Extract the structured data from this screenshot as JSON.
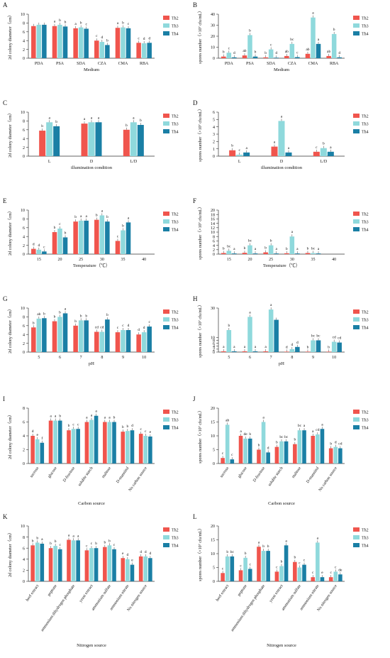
{
  "colors": {
    "Th2": "#f0554d",
    "Th3": "#8fd9dc",
    "Th4": "#1a7fa5"
  },
  "chart_data": [
    {
      "panel_label": "A",
      "type": "bar",
      "xlabel": "Medium",
      "ylabel": "2d colony diameter（cm）",
      "ylim": [
        0,
        10
      ],
      "yticks": [
        0,
        2,
        4,
        6,
        8,
        10
      ],
      "categories": [
        "PDA",
        "PSA",
        "SDA",
        "CZA",
        "CMA",
        "RBA"
      ],
      "series": [
        {
          "name": "Th2",
          "values": [
            7.3,
            7.3,
            6.8,
            4.0,
            6.9,
            3.5
          ],
          "letters": [
            "",
            "a",
            "a",
            "c",
            "a",
            "c"
          ]
        },
        {
          "name": "Th3",
          "values": [
            7.6,
            7.6,
            7.0,
            3.7,
            7.0,
            3.4
          ],
          "letters": [
            "",
            "b",
            "b",
            "d",
            "b",
            "d"
          ]
        },
        {
          "name": "Th4",
          "values": [
            7.6,
            7.2,
            6.7,
            3.0,
            6.8,
            3.5
          ],
          "letters": [
            "",
            "b",
            "c",
            "b",
            "c",
            "d"
          ]
        }
      ],
      "legend": "right"
    },
    {
      "panel_label": "B",
      "type": "bar",
      "xlabel": "Medium",
      "ylabel": "spores number（×10⁷ cfu/mL）",
      "ylim": [
        0,
        40
      ],
      "yticks": [
        0,
        10,
        20,
        30,
        40
      ],
      "categories": [
        "PDA",
        "PSA",
        "SDA",
        "CZA",
        "CMA",
        "RBA"
      ],
      "series": [
        {
          "name": "Th2",
          "values": [
            1.5,
            2.5,
            0.8,
            2.0,
            4.0,
            2.0
          ],
          "letters": [
            "b",
            "ab",
            "b",
            "ab",
            "ab",
            "ab"
          ]
        },
        {
          "name": "Th3",
          "values": [
            5.0,
            21.0,
            8.0,
            13.0,
            37.0,
            22.0
          ],
          "letters": [
            "c",
            "b",
            "c",
            "bc",
            "a",
            "b"
          ]
        },
        {
          "name": "Th4",
          "values": [
            0.8,
            1.5,
            0.5,
            1.0,
            13.0,
            0.8
          ],
          "letters": [
            "d",
            "b",
            "d",
            "c",
            "a",
            "d"
          ]
        }
      ],
      "legend": "right"
    },
    {
      "panel_label": "C",
      "type": "bar",
      "xlabel": "illumination condition",
      "ylabel": "2d colony diameter（cm）",
      "ylim": [
        0,
        10
      ],
      "yticks": [
        0,
        2,
        4,
        6,
        8,
        10
      ],
      "categories": [
        "L",
        "D",
        "L/D"
      ],
      "series": [
        {
          "name": "Th2",
          "values": [
            5.8,
            7.4,
            6.0
          ],
          "letters": [
            "b",
            "a",
            "b"
          ]
        },
        {
          "name": "Th3",
          "values": [
            7.7,
            7.7,
            7.7
          ],
          "letters": [
            "a",
            "a",
            "a"
          ]
        },
        {
          "name": "Th4",
          "values": [
            6.8,
            7.7,
            7.1
          ],
          "letters": [
            "b",
            "a",
            "b"
          ]
        }
      ],
      "legend": "right"
    },
    {
      "panel_label": "D",
      "type": "bar",
      "xlabel": "illumination condition",
      "ylabel": "spores number（×10⁷ cfu/mL）",
      "ylim": [
        0,
        6
      ],
      "yticks": [
        0,
        1,
        2,
        3,
        4,
        5,
        6
      ],
      "categories": [
        "L",
        "D",
        "L/D"
      ],
      "series": [
        {
          "name": "Th2",
          "values": [
            0.8,
            1.3,
            0.6
          ],
          "letters": [
            "b",
            "a",
            "c"
          ]
        },
        {
          "name": "Th3",
          "values": [
            0.2,
            4.8,
            1.1
          ],
          "letters": [
            "c",
            "a",
            "b"
          ]
        },
        {
          "name": "Th4",
          "values": [
            0.5,
            0.5,
            0.6
          ],
          "letters": [
            "a",
            "a",
            "a"
          ]
        }
      ],
      "legend": "right"
    },
    {
      "panel_label": "E",
      "type": "bar",
      "xlabel": "Temperature（℃）",
      "ylabel": "2d colony diameter（cm）",
      "ylim": [
        0,
        10
      ],
      "yticks": [
        0,
        2,
        4,
        6,
        8,
        10
      ],
      "categories": [
        "15",
        "20",
        "25",
        "30",
        "35",
        "40"
      ],
      "series": [
        {
          "name": "Th2",
          "values": [
            1.2,
            5.0,
            7.4,
            7.8,
            3.0,
            0
          ],
          "letters": [
            "d",
            "b",
            "b",
            "b",
            "c",
            ""
          ]
        },
        {
          "name": "Th3",
          "values": [
            1.0,
            5.8,
            7.6,
            8.8,
            5.4,
            0
          ],
          "letters": [
            "d",
            "c",
            "a",
            "a",
            "b",
            ""
          ]
        },
        {
          "name": "Th4",
          "values": [
            0.6,
            3.8,
            7.6,
            7.4,
            7.2,
            0
          ],
          "letters": [
            "c",
            "b",
            "a",
            "b",
            "a",
            ""
          ]
        }
      ],
      "legend": "right"
    },
    {
      "panel_label": "F",
      "type": "bar",
      "xlabel": "Temperature（℃）",
      "ylabel": "spores number（×10⁷ cfu/mL）",
      "ylim": [
        0,
        20
      ],
      "yticks": [
        0,
        2,
        4,
        6,
        8,
        10,
        12,
        14,
        16,
        18,
        20
      ],
      "categories": [
        "15",
        "20",
        "25",
        "30",
        "35",
        "40"
      ],
      "series": [
        {
          "name": "Th2",
          "values": [
            0.5,
            0.6,
            0.8,
            0.4,
            0.5,
            0
          ],
          "letters": [
            "b",
            "b",
            "b",
            "b",
            "b",
            ""
          ]
        },
        {
          "name": "Th3",
          "values": [
            1.5,
            4.0,
            4.0,
            8.0,
            0.5,
            0
          ],
          "letters": [
            "bc",
            "bc",
            "b",
            "a",
            "bc",
            ""
          ]
        },
        {
          "name": "Th4",
          "values": [
            0.3,
            0.3,
            0.3,
            0.3,
            0.3,
            0
          ],
          "letters": [
            "a",
            "a",
            "a",
            "a",
            "a",
            ""
          ]
        }
      ],
      "legend": "right"
    },
    {
      "panel_label": "G",
      "type": "bar",
      "xlabel": "pH",
      "ylabel": "2d colony diameter（cm）",
      "ylim": [
        0,
        10
      ],
      "yticks": [
        0,
        2,
        4,
        6,
        8,
        10
      ],
      "categories": [
        "5",
        "6",
        "7",
        "8",
        "9",
        "10"
      ],
      "series": [
        {
          "name": "Th2",
          "values": [
            5.6,
            7.0,
            6.0,
            4.6,
            4.5,
            4.0
          ],
          "letters": [
            "b",
            "b",
            "b",
            "cd",
            "c",
            "d"
          ]
        },
        {
          "name": "Th3",
          "values": [
            7.6,
            8.0,
            7.2,
            4.6,
            5.0,
            4.5
          ],
          "letters": [
            "ab",
            "b",
            "b",
            "cd",
            "c",
            "d"
          ]
        },
        {
          "name": "Th4",
          "values": [
            7.7,
            8.8,
            7.2,
            7.4,
            5.0,
            5.8
          ],
          "letters": [
            "b",
            "a",
            "b",
            "b",
            "d",
            "c"
          ]
        }
      ],
      "legend": "right"
    },
    {
      "panel_label": "H",
      "type": "bar",
      "xlabel": "pH",
      "ylabel": "spores number（×10⁷ cfu/mL）",
      "ylim": [
        0,
        30
      ],
      "yticks": [
        0,
        2,
        4,
        6,
        8,
        10,
        30
      ],
      "categories": [
        "5",
        "6",
        "7",
        "8",
        "9",
        "10"
      ],
      "series": [
        {
          "name": "Th2",
          "values": [
            0.5,
            0.5,
            0.5,
            0.3,
            0.3,
            0.3
          ],
          "letters": [
            "a",
            "a",
            "a",
            "d",
            "b",
            "b"
          ]
        },
        {
          "name": "Th3",
          "values": [
            15.0,
            24.0,
            29.0,
            2.0,
            8.0,
            7.0
          ],
          "letters": [
            "b",
            "a",
            "a",
            "d",
            "bc",
            "cd"
          ]
        },
        {
          "name": "Th4",
          "values": [
            0.5,
            0.5,
            22.0,
            3.5,
            8.0,
            6.5
          ],
          "letters": [
            "a",
            "a",
            "",
            "d",
            "bc",
            "cd"
          ]
        }
      ],
      "legend": "right"
    },
    {
      "panel_label": "I",
      "type": "bar",
      "xlabel": "Carbon source",
      "ylabel": "2d colony diameter（cm）",
      "ylim": [
        0,
        8
      ],
      "yticks": [
        0,
        2,
        4,
        6,
        8
      ],
      "categories": [
        "sucrose",
        "glucose",
        "D-fructose",
        "soluble starch",
        "maltose",
        "D-mannitol",
        "No carbon source"
      ],
      "series": [
        {
          "name": "Th2",
          "values": [
            4.0,
            6.2,
            4.8,
            6.0,
            6.0,
            4.6,
            4.3
          ],
          "letters": [
            "d",
            "a",
            "b",
            "a",
            "a",
            "b",
            "c"
          ]
        },
        {
          "name": "Th3",
          "values": [
            3.5,
            6.2,
            5.0,
            6.3,
            6.0,
            4.7,
            4.0
          ],
          "letters": [
            "e",
            "a",
            "c",
            "a",
            "a",
            "b",
            "c"
          ]
        },
        {
          "name": "Th4",
          "values": [
            3.0,
            6.2,
            5.0,
            6.9,
            6.0,
            4.8,
            3.9
          ],
          "letters": [
            "f",
            "b",
            "c",
            "a",
            "b",
            "d",
            "e"
          ]
        }
      ],
      "legend": "right"
    },
    {
      "panel_label": "J",
      "type": "bar",
      "xlabel": "Carbon source",
      "ylabel": "spores number（×10⁷ cfu/mL）",
      "ylim": [
        0,
        20
      ],
      "yticks": [
        0,
        5,
        10,
        15,
        20
      ],
      "categories": [
        "sucrose",
        "glucose",
        "D-fructose",
        "soluble starch",
        "maltose",
        "D-mannitol",
        "No carbon source"
      ],
      "series": [
        {
          "name": "Th2",
          "values": [
            2.0,
            10.0,
            5.0,
            6.0,
            7.0,
            10.0,
            5.5
          ],
          "letters": [
            "c",
            "a",
            "b",
            "b",
            "b",
            "a",
            "b"
          ]
        },
        {
          "name": "Th3",
          "values": [
            14.0,
            9.0,
            15.0,
            8.0,
            12.0,
            10.5,
            6.0
          ],
          "letters": [
            "ab",
            "de",
            "a",
            "bc",
            "bc",
            "cd",
            "d"
          ]
        },
        {
          "name": "Th4",
          "values": [
            1.5,
            9.0,
            4.0,
            8.0,
            12.0,
            12.5,
            5.5
          ],
          "letters": [
            "c",
            "b",
            "d",
            "bc",
            "a",
            "a",
            "cd"
          ]
        }
      ],
      "legend": "right"
    },
    {
      "panel_label": "K",
      "type": "bar",
      "xlabel": "Nitrogen source",
      "ylabel": "2d colony diameter（cm）",
      "ylim": [
        0,
        10
      ],
      "yticks": [
        0,
        2,
        4,
        6,
        8,
        10
      ],
      "categories": [
        "beef extract",
        "peptone",
        "ammonium dihydrogen phosphate",
        "yeast extract",
        "ammonium sulfate",
        "ammonium nitrate",
        "No nitrogen source"
      ],
      "series": [
        {
          "name": "Th2",
          "values": [
            6.5,
            6.0,
            7.5,
            5.6,
            6.2,
            4.2,
            4.5
          ],
          "letters": [
            "b",
            "b",
            "a",
            "c",
            "b",
            "e",
            "d"
          ]
        },
        {
          "name": "Th3",
          "values": [
            7.0,
            6.4,
            7.4,
            6.0,
            6.5,
            4.0,
            4.5
          ],
          "letters": [
            "b",
            "b",
            "a",
            "c",
            "b",
            "d",
            "d"
          ]
        },
        {
          "name": "Th4",
          "values": [
            6.8,
            5.8,
            7.4,
            6.0,
            5.8,
            3.0,
            4.2
          ],
          "letters": [
            "a",
            "c",
            "a",
            "b",
            "c",
            "e",
            "d"
          ]
        }
      ],
      "legend": "right"
    },
    {
      "panel_label": "L",
      "type": "bar",
      "xlabel": "Nitrogen source",
      "ylabel": "spores number（×10⁷ cfu/mL）",
      "ylim": [
        0,
        20
      ],
      "yticks": [
        0,
        5,
        10,
        15,
        20
      ],
      "categories": [
        "beef extract",
        "peptone",
        "ammonium dihydrogen phosphate",
        "yeast extract",
        "ammonium sulfate",
        "ammonium nitrate",
        "No nitrogen source"
      ],
      "series": [
        {
          "name": "Th2",
          "values": [
            3.0,
            4.0,
            12.5,
            3.5,
            7.0,
            1.5,
            1.5
          ],
          "letters": [
            "c",
            "c",
            "a",
            "c",
            "b",
            "c",
            "c"
          ]
        },
        {
          "name": "Th3",
          "values": [
            9.0,
            8.5,
            11.0,
            5.5,
            5.0,
            14.0,
            3.5
          ],
          "letters": [
            "b",
            "b",
            "b",
            "b",
            "c",
            "a",
            "c"
          ]
        },
        {
          "name": "Th4",
          "values": [
            9.0,
            4.5,
            11.0,
            13.0,
            6.0,
            1.5,
            2.5
          ],
          "letters": [
            "bc",
            "c",
            "b",
            "a",
            "c",
            "e",
            "de"
          ]
        }
      ],
      "legend": "right"
    }
  ]
}
